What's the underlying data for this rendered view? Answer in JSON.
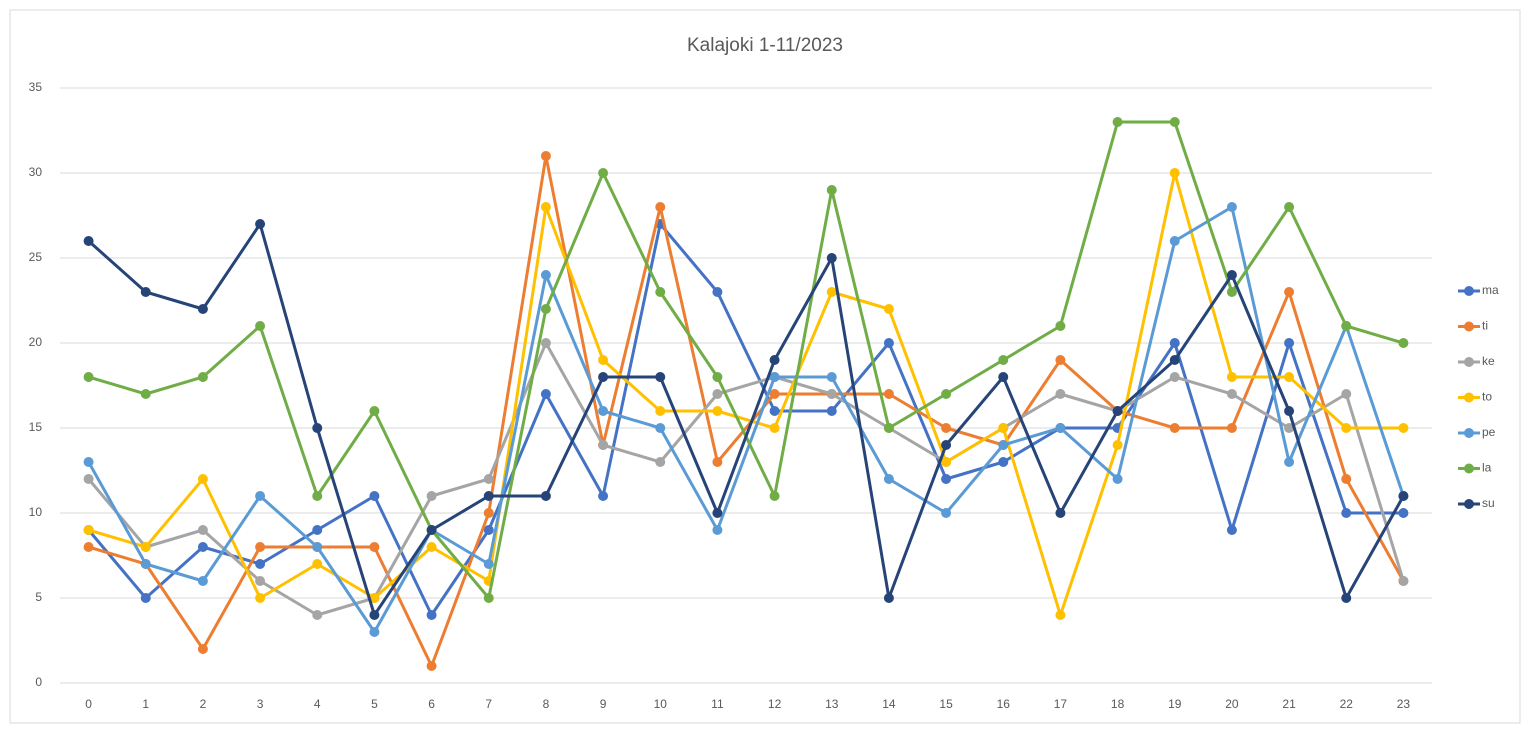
{
  "chart_data": {
    "type": "line",
    "title": "Kalajoki 1-11/2023",
    "categories": [
      "0",
      "1",
      "2",
      "3",
      "4",
      "5",
      "6",
      "7",
      "8",
      "9",
      "10",
      "11",
      "12",
      "13",
      "14",
      "15",
      "16",
      "17",
      "18",
      "19",
      "20",
      "21",
      "22",
      "23"
    ],
    "series": [
      {
        "name": "ma",
        "color": "#4472c4",
        "values": [
          9,
          5,
          8,
          7,
          9,
          11,
          4,
          9,
          17,
          11,
          27,
          23,
          16,
          16,
          20,
          12,
          13,
          15,
          15,
          20,
          9,
          20,
          10,
          10
        ]
      },
      {
        "name": "ti",
        "color": "#ed7d31",
        "values": [
          8,
          7,
          2,
          8,
          8,
          8,
          1,
          10,
          31,
          14,
          28,
          13,
          17,
          17,
          17,
          15,
          14,
          19,
          16,
          15,
          15,
          23,
          12,
          6
        ]
      },
      {
        "name": "ke",
        "color": "#a5a5a5",
        "values": [
          12,
          8,
          9,
          6,
          4,
          5,
          11,
          12,
          20,
          14,
          13,
          17,
          18,
          17,
          15,
          13,
          15,
          17,
          16,
          18,
          17,
          15,
          17,
          6
        ]
      },
      {
        "name": "to",
        "color": "#ffc000",
        "values": [
          9,
          8,
          12,
          5,
          7,
          5,
          8,
          6,
          28,
          19,
          16,
          16,
          15,
          23,
          22,
          13,
          15,
          4,
          14,
          30,
          18,
          18,
          15,
          15
        ]
      },
      {
        "name": "pe",
        "color": "#5b9bd5",
        "values": [
          13,
          7,
          6,
          11,
          8,
          3,
          9,
          7,
          24,
          16,
          15,
          9,
          18,
          18,
          12,
          10,
          14,
          15,
          12,
          26,
          28,
          13,
          21,
          11
        ]
      },
      {
        "name": "la",
        "color": "#70ad47",
        "values": [
          18,
          17,
          18,
          21,
          11,
          16,
          9,
          5,
          22,
          30,
          23,
          18,
          11,
          29,
          15,
          17,
          19,
          21,
          33,
          33,
          23,
          28,
          21,
          20
        ]
      },
      {
        "name": "su",
        "color": "#264478",
        "values": [
          26,
          23,
          22,
          27,
          15,
          4,
          9,
          11,
          11,
          18,
          18,
          10,
          19,
          25,
          5,
          14,
          18,
          10,
          16,
          19,
          24,
          16,
          5,
          11
        ]
      }
    ],
    "ylim": [
      0,
      35
    ],
    "yticks": [
      0,
      5,
      10,
      15,
      20,
      25,
      30,
      35
    ],
    "grid": true,
    "legend": "right"
  }
}
